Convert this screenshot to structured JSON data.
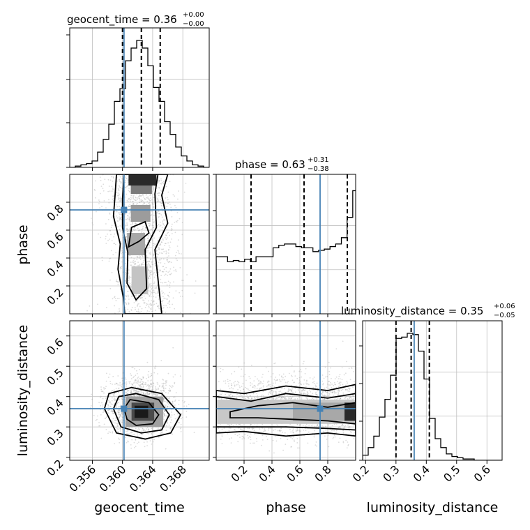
{
  "chart_data": {
    "type": "corner_plot",
    "parameters": [
      "geocent_time",
      "phase",
      "luminosity_distance"
    ],
    "truths": {
      "geocent_time": 0.3602,
      "phase": 0.745,
      "luminosity_distance": 0.36
    },
    "colors": {
      "truth": "#4682b4",
      "hist": "#000000",
      "quantile": "#000000",
      "grid": "#c0c0c0"
    },
    "axes_labels": {
      "geocent_time": "geocent_time",
      "phase": "phase",
      "luminosity_distance": "luminosity_distance"
    },
    "titles": [
      {
        "param": "geocent_time",
        "name": "geocent_time",
        "value": "0.36",
        "plus": "+0.00",
        "minus": "−0.00"
      },
      {
        "param": "phase",
        "name": "phase",
        "value": "0.63",
        "plus": "+0.31",
        "minus": "−0.38"
      },
      {
        "param": "luminosity_distance",
        "name": "luminosity_distance",
        "value": "0.35",
        "plus": "+0.06",
        "minus": "−0.05"
      }
    ],
    "ranges": {
      "geocent_time": [
        0.353,
        0.3715
      ],
      "phase": [
        0.0,
        1.0
      ],
      "luminosity_distance": [
        0.19,
        0.65
      ]
    },
    "ticks": {
      "geocent_time": [
        0.356,
        0.36,
        0.364,
        0.368
      ],
      "geocent_time_labels": [
        "0.356",
        "0.360",
        "0.364",
        "0.368"
      ],
      "phase": [
        0.2,
        0.4,
        0.6,
        0.8
      ],
      "phase_labels": [
        "0.2",
        "0.4",
        "0.6",
        "0.8"
      ],
      "luminosity_distance": [
        0.2,
        0.3,
        0.4,
        0.5,
        0.6
      ],
      "luminosity_distance_labels": [
        "0.2",
        "0.3",
        "0.4",
        "0.5",
        "0.6"
      ],
      "luminosity_distance_y": [
        0.2,
        0.3,
        0.4,
        0.5,
        0.6
      ],
      "luminosity_distance_y_labels": [
        "0.2",
        "0.3",
        "0.4",
        "0.5",
        "0.6"
      ]
    },
    "quantiles": {
      "geocent_time": [
        0.36,
        0.3625,
        0.365
      ],
      "phase": [
        0.25,
        0.63,
        0.94
      ],
      "luminosity_distance": [
        0.3,
        0.35,
        0.41
      ]
    },
    "hist_geocent_time": {
      "edges_start": 0.353,
      "bin_width": 0.00074,
      "counts": [
        0.0,
        0.01,
        0.02,
        0.03,
        0.05,
        0.12,
        0.22,
        0.34,
        0.52,
        0.62,
        0.84,
        0.94,
        1.0,
        0.94,
        0.8,
        0.63,
        0.52,
        0.36,
        0.26,
        0.16,
        0.09,
        0.05,
        0.02,
        0.01,
        0.0
      ]
    },
    "hist_phase": {
      "edges_start": 0.0,
      "bin_width": 0.0408,
      "counts": [
        0.45,
        0.45,
        0.41,
        0.42,
        0.41,
        0.43,
        0.41,
        0.45,
        0.45,
        0.45,
        0.52,
        0.54,
        0.55,
        0.55,
        0.53,
        0.52,
        0.52,
        0.49,
        0.5,
        0.51,
        0.53,
        0.55,
        0.6,
        0.76,
        0.97
      ]
    },
    "hist_luminosity_distance": {
      "edges_start": 0.19,
      "bin_width": 0.0184,
      "counts": [
        0.04,
        0.1,
        0.19,
        0.34,
        0.48,
        0.67,
        0.96,
        0.97,
        1.0,
        0.99,
        0.86,
        0.64,
        0.33,
        0.17,
        0.1,
        0.05,
        0.03,
        0.02,
        0.01,
        0.01,
        0.0,
        0.0,
        0.0,
        0.0,
        0.0
      ]
    }
  }
}
